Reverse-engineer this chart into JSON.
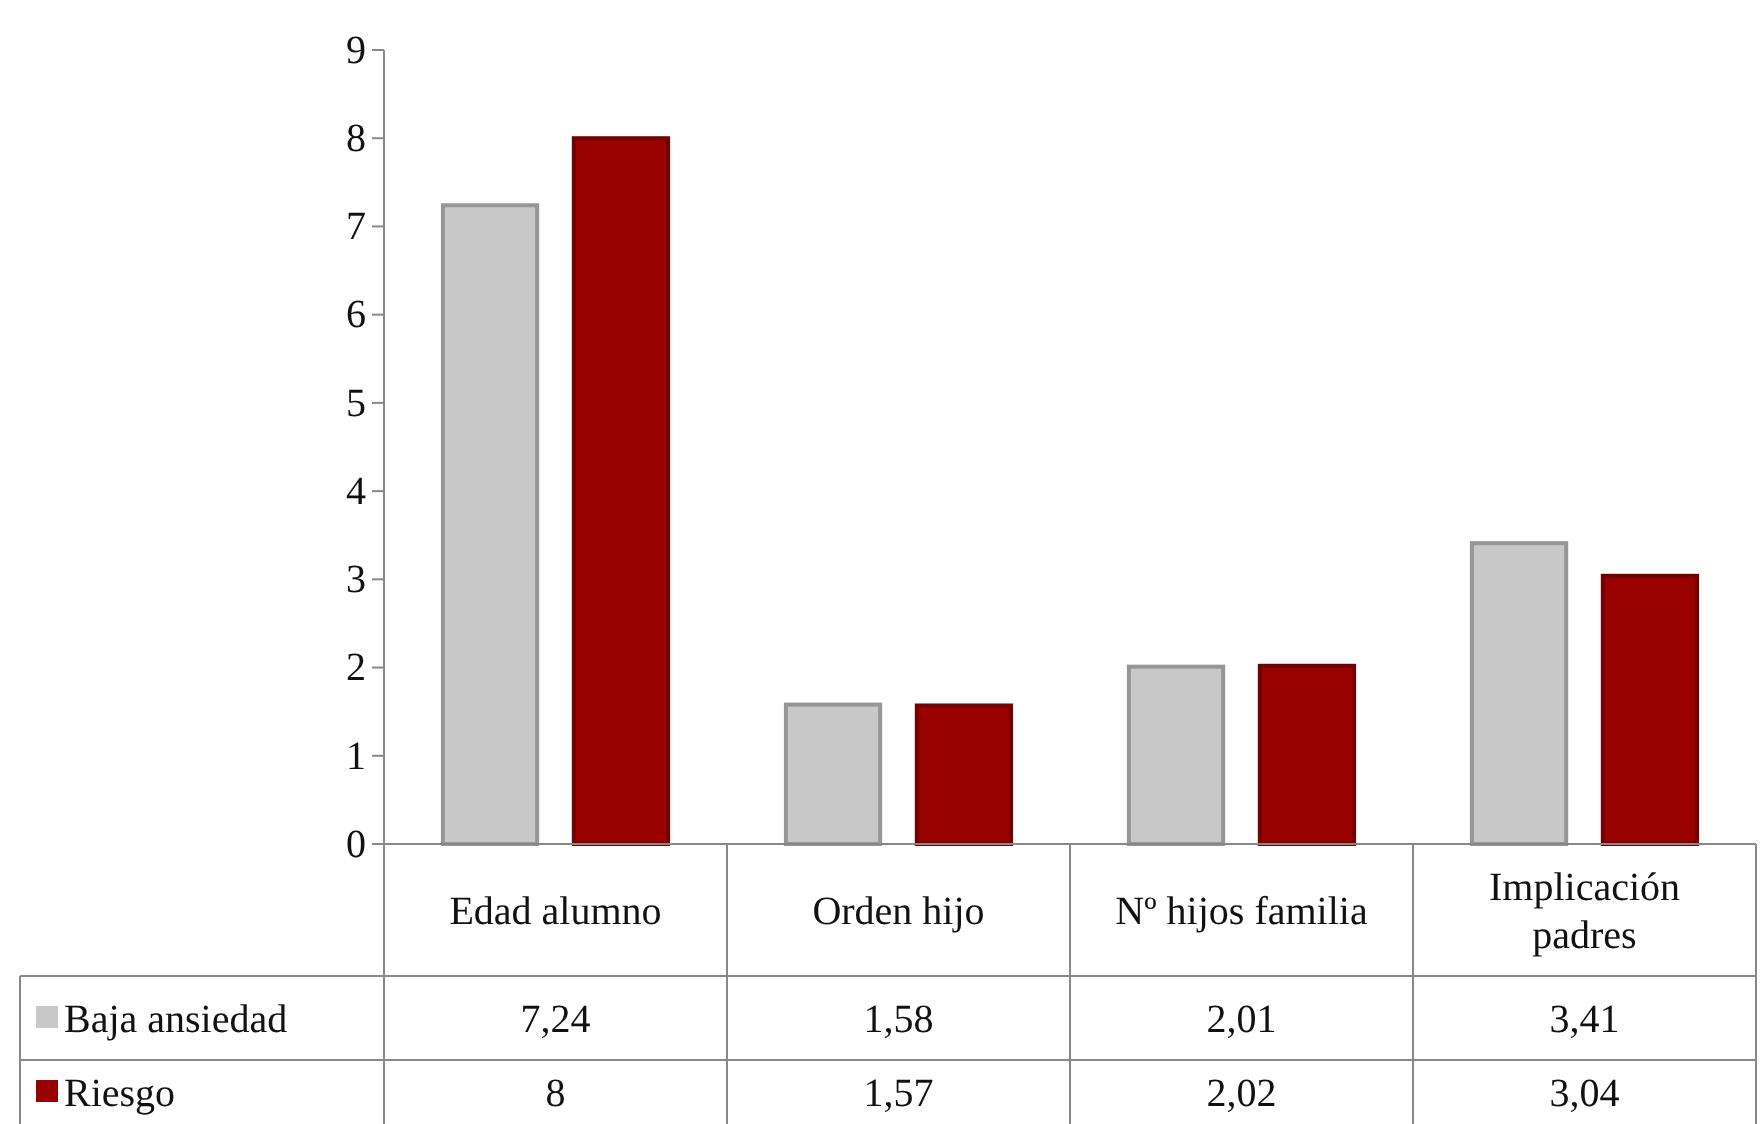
{
  "chart_data": {
    "type": "bar",
    "categories": [
      "Edad alumno",
      "Orden hijo",
      "Nº hijos familia",
      "Implicación padres"
    ],
    "series": [
      {
        "name": "Baja ansiedad",
        "color": "#c8c8c8",
        "values": [
          7.24,
          1.58,
          2.01,
          3.41
        ],
        "value_labels": [
          "7,24",
          "1,58",
          "2,01",
          "3,41"
        ]
      },
      {
        "name": "Riesgo",
        "color": "#990000",
        "values": [
          8,
          1.57,
          2.02,
          3.04
        ],
        "value_labels": [
          "8",
          "1,57",
          "2,02",
          "3,04"
        ]
      }
    ],
    "ylim": [
      0,
      9
    ],
    "yticks": [
      0,
      1,
      2,
      3,
      4,
      5,
      6,
      7,
      8,
      9
    ],
    "grid": false,
    "legend": "bottom"
  }
}
